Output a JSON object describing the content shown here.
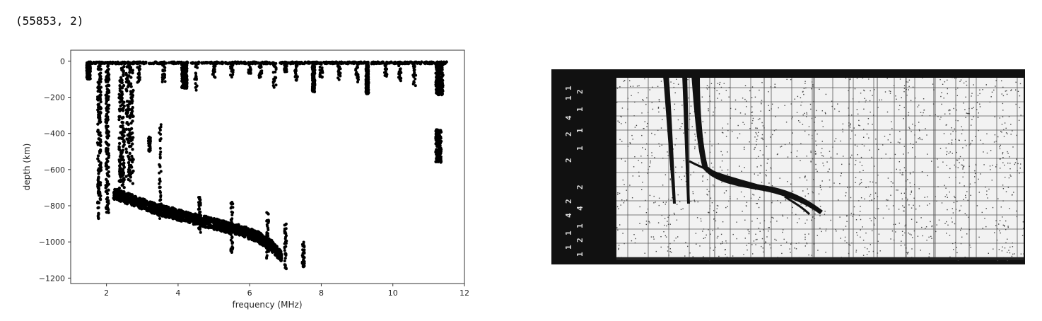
{
  "output": {
    "shape_text": "(55853, 2)"
  },
  "chart_data": {
    "type": "scatter",
    "xlabel": "frequency (MHz)",
    "ylabel": "depth (km)",
    "xlim": [
      1.0,
      12.0
    ],
    "ylim": [
      -1230,
      60
    ],
    "xticks": [
      2,
      4,
      6,
      8,
      10,
      12
    ],
    "yticks": [
      0,
      -200,
      -400,
      -600,
      -800,
      -1000,
      -1200
    ],
    "grid": false,
    "marker_color": "#000000",
    "clusters": [
      {
        "name": "top-band",
        "x": [
          1.5,
          11.5
        ],
        "y": [
          -15,
          -5
        ]
      },
      {
        "name": "col-1.8",
        "x": [
          1.75,
          1.85
        ],
        "y": [
          -880,
          -10
        ]
      },
      {
        "name": "col-2.0",
        "x": [
          1.98,
          2.07
        ],
        "y": [
          -840,
          -10
        ]
      },
      {
        "name": "col-2.4",
        "x": [
          2.35,
          2.5
        ],
        "y": [
          -720,
          -10
        ]
      },
      {
        "name": "col-2.6",
        "x": [
          2.55,
          2.75
        ],
        "y": [
          -680,
          -10
        ]
      },
      {
        "name": "col-4.2",
        "x": [
          4.1,
          4.25
        ],
        "y": [
          -150,
          -10
        ]
      },
      {
        "name": "col-7.8",
        "x": [
          7.75,
          7.82
        ],
        "y": [
          -170,
          -10
        ]
      },
      {
        "name": "col-9.3",
        "x": [
          9.25,
          9.32
        ],
        "y": [
          -180,
          -10
        ]
      },
      {
        "name": "col-11.3",
        "x": [
          11.2,
          11.4
        ],
        "y": [
          -190,
          -10
        ]
      },
      {
        "name": "col-11.3-low",
        "x": [
          11.2,
          11.35
        ],
        "y": [
          -560,
          -380
        ]
      },
      {
        "name": "col-1.5",
        "x": [
          1.45,
          1.55
        ],
        "y": [
          -100,
          -10
        ]
      }
    ],
    "trace": {
      "x": [
        2.2,
        2.6,
        3.0,
        3.4,
        3.8,
        4.2,
        4.6,
        5.0,
        5.4,
        5.8,
        6.2,
        6.6,
        6.9
      ],
      "y": [
        -735,
        -760,
        -790,
        -820,
        -840,
        -860,
        -880,
        -900,
        -920,
        -940,
        -970,
        -1020,
        -1080
      ]
    }
  }
}
